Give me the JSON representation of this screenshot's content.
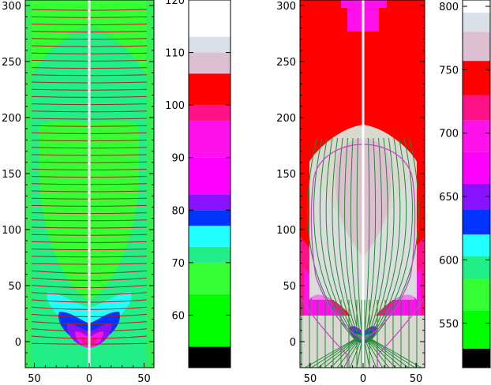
{
  "chart_data": [
    {
      "type": "heatmap",
      "panel": "left",
      "xlabel": "",
      "ylabel": "",
      "title": "",
      "xlim": [
        -60,
        60
      ],
      "ylim": [
        -22,
        305
      ],
      "x_ticks": [
        "50",
        "0",
        "50"
      ],
      "y_ticks": [
        "0",
        "50",
        "100",
        "150",
        "200",
        "250",
        "300"
      ],
      "overlay": "horizontal contour lines (dark red) across full width",
      "center_line": "white vertical line at x = 0"
    },
    {
      "type": "heatmap",
      "panel": "left-colorbar",
      "range": [
        50,
        120
      ],
      "tick_labels": [
        "60",
        "70",
        "80",
        "90",
        "100",
        "110",
        "120"
      ],
      "bands": [
        {
          "from": 50,
          "to": 54,
          "color": "#000000"
        },
        {
          "from": 54,
          "to": 64,
          "color": "#00ff00"
        },
        {
          "from": 64,
          "to": 70,
          "color": "#33ff33"
        },
        {
          "from": 70,
          "to": 73,
          "color": "#22ee88"
        },
        {
          "from": 73,
          "to": 77,
          "color": "#22ffff"
        },
        {
          "from": 77,
          "to": 80,
          "color": "#0033ff"
        },
        {
          "from": 80,
          "to": 83,
          "color": "#8811ff"
        },
        {
          "from": 83,
          "to": 90,
          "color": "#ff00ff"
        },
        {
          "from": 90,
          "to": 97,
          "color": "#ff11ee"
        },
        {
          "from": 97,
          "to": 100,
          "color": "#ff1188"
        },
        {
          "from": 100,
          "to": 106,
          "color": "#ff0000"
        },
        {
          "from": 106,
          "to": 110,
          "color": "#ddc0d0"
        },
        {
          "from": 110,
          "to": 113,
          "color": "#d9e0e8"
        },
        {
          "from": 113,
          "to": 120,
          "color": "#ffffff"
        }
      ]
    },
    {
      "type": "heatmap",
      "panel": "right",
      "xlabel": "",
      "ylabel": "",
      "title": "",
      "xlim": [
        -60,
        60
      ],
      "ylim": [
        -22,
        305
      ],
      "x_ticks": [
        "50",
        "0",
        "50"
      ],
      "y_ticks": [
        "0",
        "50",
        "100",
        "150",
        "200",
        "250",
        "300"
      ],
      "overlay": "vertical field lines (green) in central lobe, magenta contour",
      "center_line": "white vertical line at x = 0"
    },
    {
      "type": "heatmap",
      "panel": "right-colorbar",
      "range": [
        515,
        805
      ],
      "tick_labels": [
        "550",
        "600",
        "650",
        "700",
        "750",
        "800"
      ],
      "bands": [
        {
          "from": 515,
          "to": 530,
          "color": "#000000"
        },
        {
          "from": 530,
          "to": 560,
          "color": "#00ff00"
        },
        {
          "from": 560,
          "to": 585,
          "color": "#33ff33"
        },
        {
          "from": 585,
          "to": 603,
          "color": "#22ee88"
        },
        {
          "from": 603,
          "to": 620,
          "color": "#22ffff"
        },
        {
          "from": 620,
          "to": 640,
          "color": "#0033ff"
        },
        {
          "from": 640,
          "to": 660,
          "color": "#8811ff"
        },
        {
          "from": 660,
          "to": 685,
          "color": "#ff00ff"
        },
        {
          "from": 685,
          "to": 710,
          "color": "#ff11ee"
        },
        {
          "from": 710,
          "to": 730,
          "color": "#ff1188"
        },
        {
          "from": 730,
          "to": 757,
          "color": "#ff0000"
        },
        {
          "from": 757,
          "to": 780,
          "color": "#ddc0d0"
        },
        {
          "from": 780,
          "to": 795,
          "color": "#d9e0e8"
        },
        {
          "from": 795,
          "to": 805,
          "color": "#ffffff"
        }
      ]
    }
  ]
}
